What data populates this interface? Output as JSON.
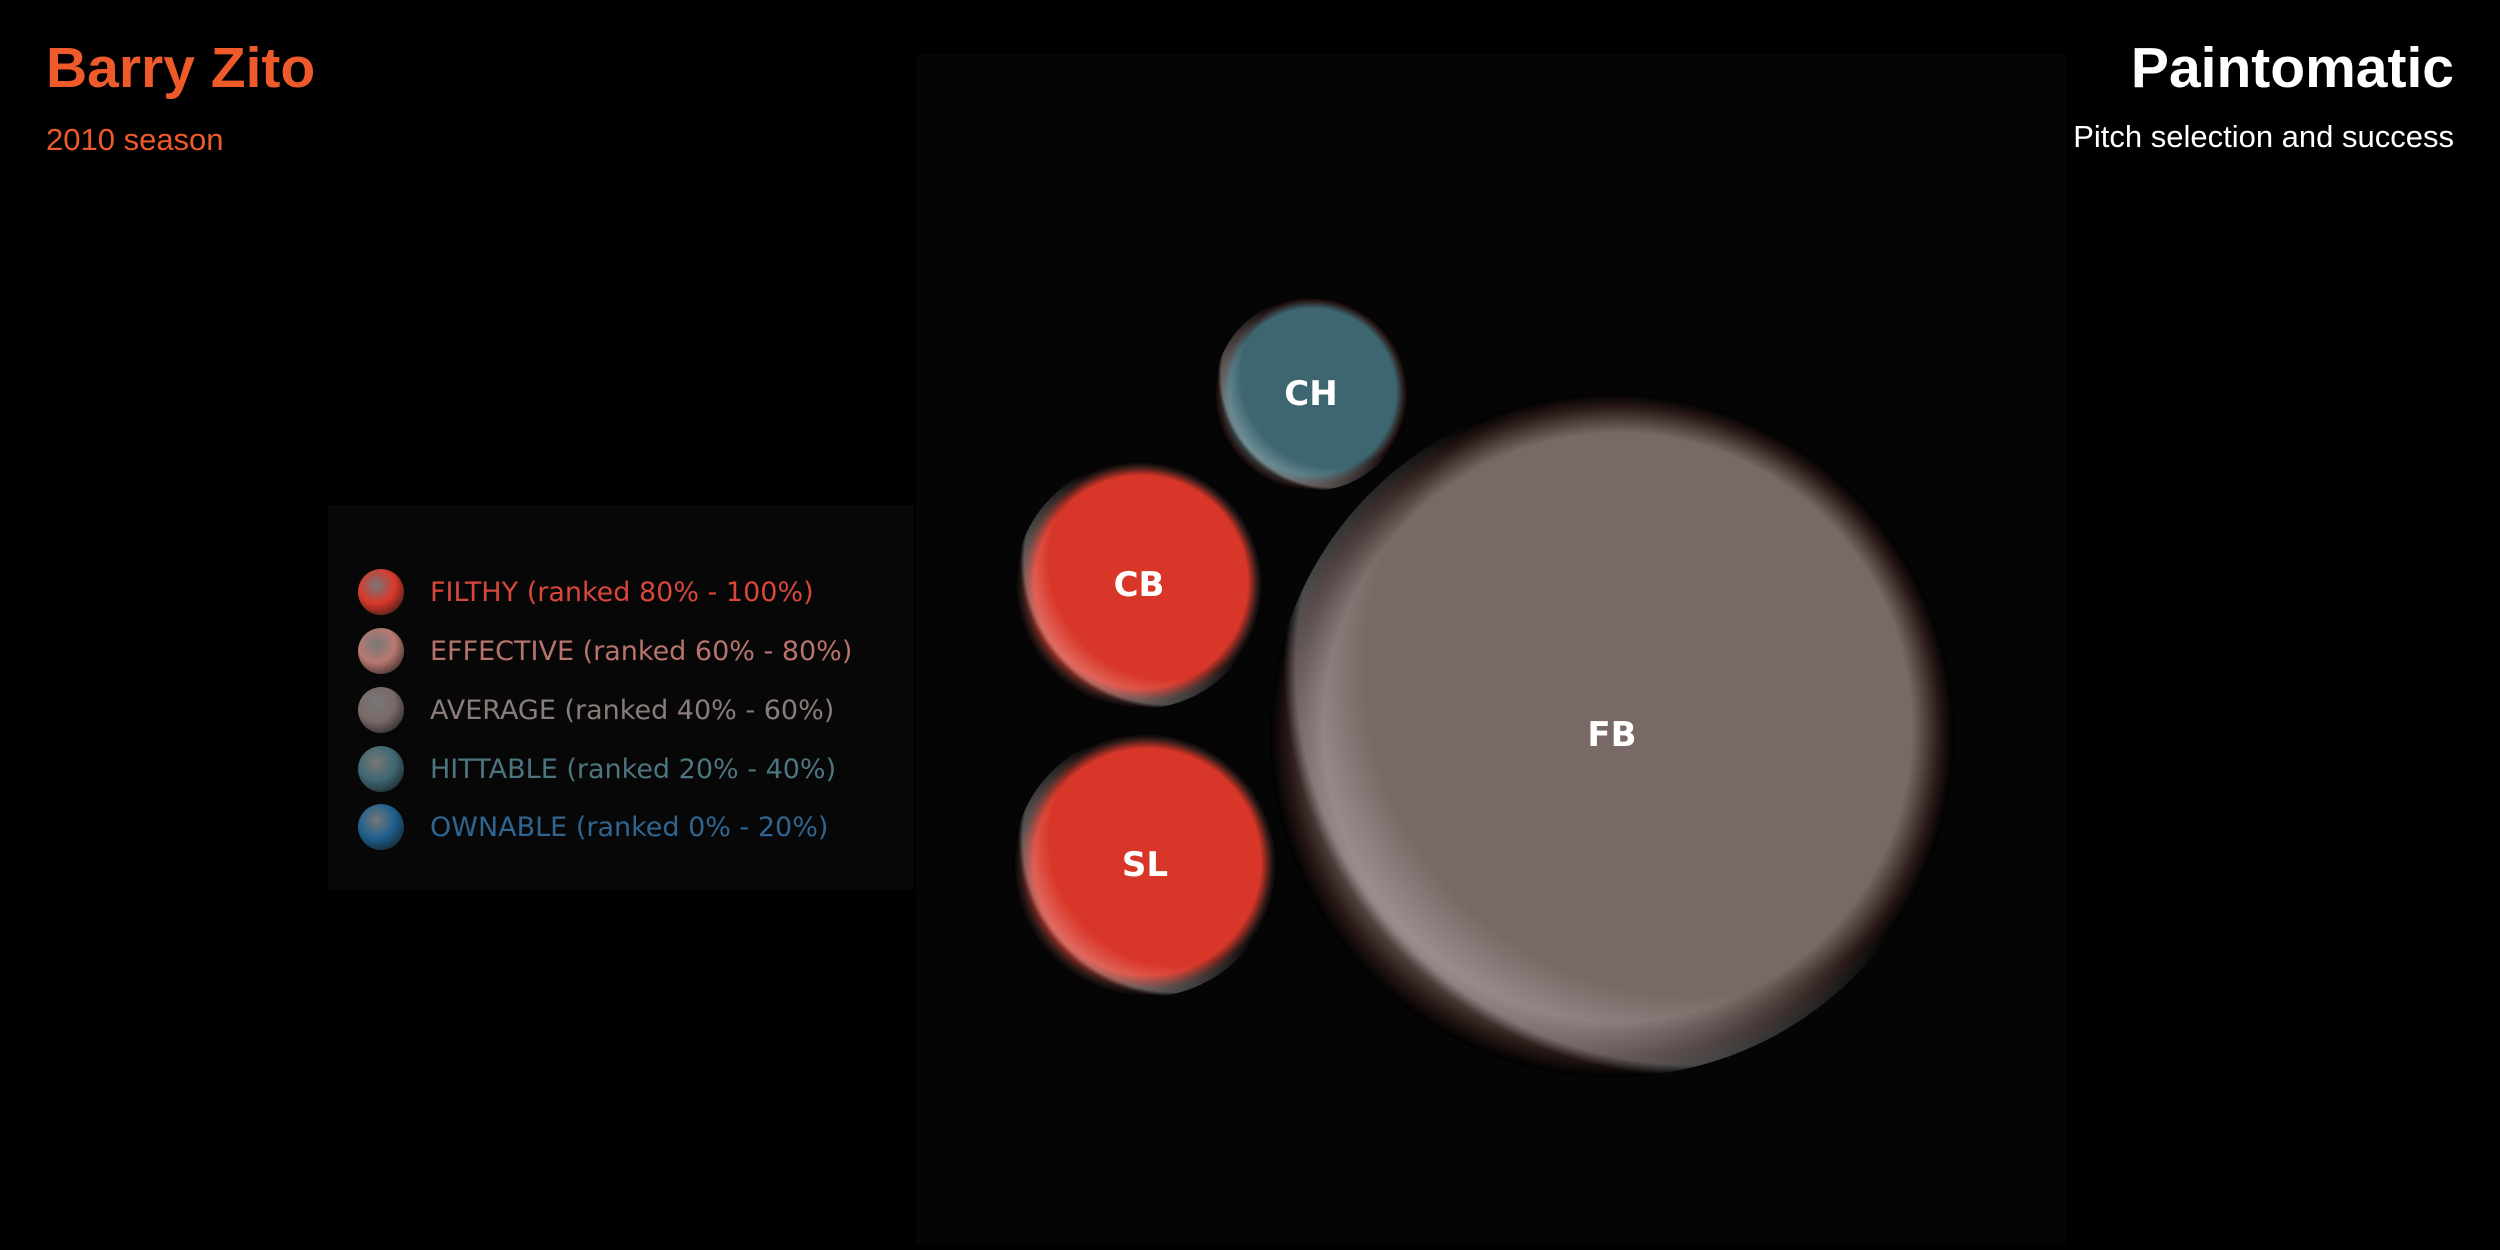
{
  "header": {
    "player_name": "Barry Zito",
    "season": "2010 season",
    "app_title": "Paintomatic",
    "app_subtitle": "Pitch selection and success"
  },
  "legend": {
    "items": [
      {
        "label": "FILTHY (ranked 80% - 100%)",
        "color": "#d9392b",
        "text_color": "#d9473c"
      },
      {
        "label": "EFFECTIVE (ranked 60% - 80%)",
        "color": "#b87a72",
        "text_color": "#b8746c"
      },
      {
        "label": "AVERAGE (ranked 40% - 60%)",
        "color": "#7a6a68",
        "text_color": "#8a7c7a"
      },
      {
        "label": "HITTABLE (ranked 20% - 40%)",
        "color": "#3f6873",
        "text_color": "#4d7580"
      },
      {
        "label": "OWNABLE (ranked 0% - 20%)",
        "color": "#1f5f8e",
        "text_color": "#2f6590"
      }
    ]
  },
  "chart_data": {
    "type": "bubble",
    "title": "Pitch selection and success",
    "series": [
      {
        "label": "FB",
        "category": "AVERAGE",
        "color": "#786866"
      },
      {
        "label": "CB",
        "category": "FILTHY",
        "color": "#d83628"
      },
      {
        "label": "SL",
        "category": "FILTHY",
        "color": "#d83628"
      },
      {
        "label": "CH",
        "category": "HITTABLE",
        "color": "#3d6670"
      }
    ]
  }
}
